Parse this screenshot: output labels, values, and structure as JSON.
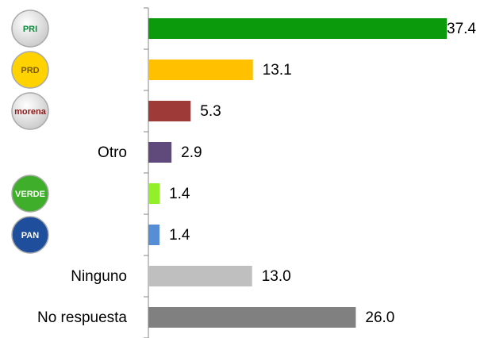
{
  "chart_data": {
    "type": "hbar",
    "categories": [
      "PRI",
      "PRD",
      "morena",
      "Otro",
      "VERDE",
      "PAN",
      "Ninguno",
      "No respuesta"
    ],
    "logos": [
      true,
      true,
      true,
      false,
      true,
      true,
      false,
      false
    ],
    "values": [
      37.4,
      13.1,
      5.3,
      2.9,
      1.4,
      1.4,
      13.0,
      26.0
    ],
    "value_labels": [
      "37.4",
      "13.1",
      "5.3",
      "2.9",
      "1.4",
      "1.4",
      "13.0",
      "26.0"
    ],
    "colors": [
      "#0b9a0b",
      "#ffc000",
      "#9e3a38",
      "#604a7b",
      "#92f02a",
      "#558ed5",
      "#bfbfbf",
      "#808080"
    ],
    "xlim": [
      0,
      37.4
    ]
  }
}
